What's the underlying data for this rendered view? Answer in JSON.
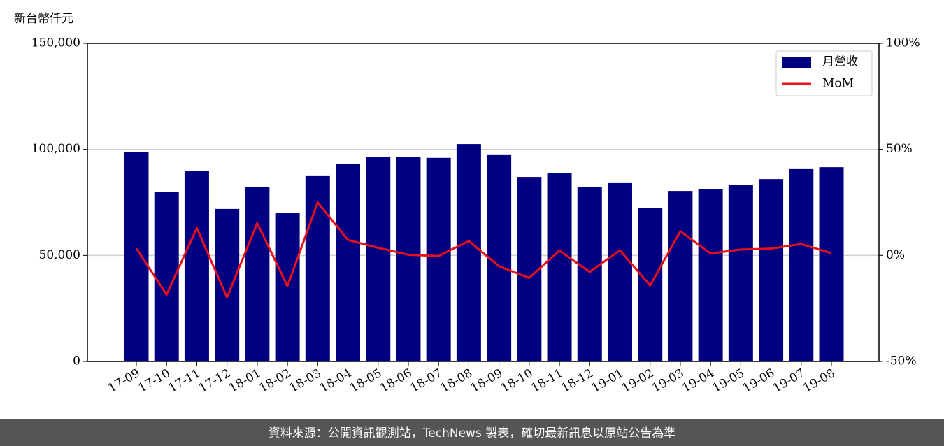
{
  "chart_data": {
    "type": "bar",
    "y_axis_label": "新台幣仟元",
    "categories": [
      "17-09",
      "17-10",
      "17-11",
      "17-12",
      "18-01",
      "18-02",
      "18-03",
      "18-04",
      "18-05",
      "18-06",
      "18-07",
      "18-08",
      "18-09",
      "18-10",
      "18-11",
      "18-12",
      "19-01",
      "19-02",
      "19-03",
      "19-04",
      "19-05",
      "19-06",
      "19-07",
      "19-08"
    ],
    "series": [
      {
        "name": "月營收",
        "color": "#000080",
        "type": "bar",
        "values": [
          98900,
          80100,
          90000,
          71900,
          82400,
          70200,
          87400,
          93300,
          96300,
          96300,
          96000,
          102500,
          97300,
          87000,
          89000,
          82100,
          84100,
          72200,
          80400,
          81100,
          83400,
          86000,
          90700,
          91600
        ]
      },
      {
        "name": "MoM",
        "color": "#e8111b",
        "type": "line",
        "axis": "y2",
        "values": [
          3.3,
          -18.5,
          12.9,
          -19.8,
          15.2,
          -14.5,
          25.0,
          7.3,
          3.6,
          0.3,
          -0.3,
          6.8,
          -5.1,
          -10.6,
          2.3,
          -7.8,
          2.4,
          -14.2,
          11.4,
          0.9,
          2.8,
          3.2,
          5.4,
          1.0
        ]
      }
    ],
    "ylim": [
      0,
      150000
    ],
    "yticks": [
      0,
      {
        "value": 50000,
        "label": "50,000"
      },
      {
        "value": 100000,
        "label": "100,000"
      },
      {
        "value": 150000,
        "label": "150,000"
      }
    ],
    "y2lim": [
      -50,
      100
    ],
    "y2ticks": [
      {
        "value": -50,
        "label": "-50%"
      },
      {
        "value": 0,
        "label": "0%"
      },
      {
        "value": 50,
        "label": "50%"
      },
      {
        "value": 100,
        "label": "100%"
      }
    ],
    "grid": true,
    "legend": "upper right",
    "source": "資料來源：公開資訊觀測站，TechNews 製表，確切最新訊息以原站公告為準"
  }
}
